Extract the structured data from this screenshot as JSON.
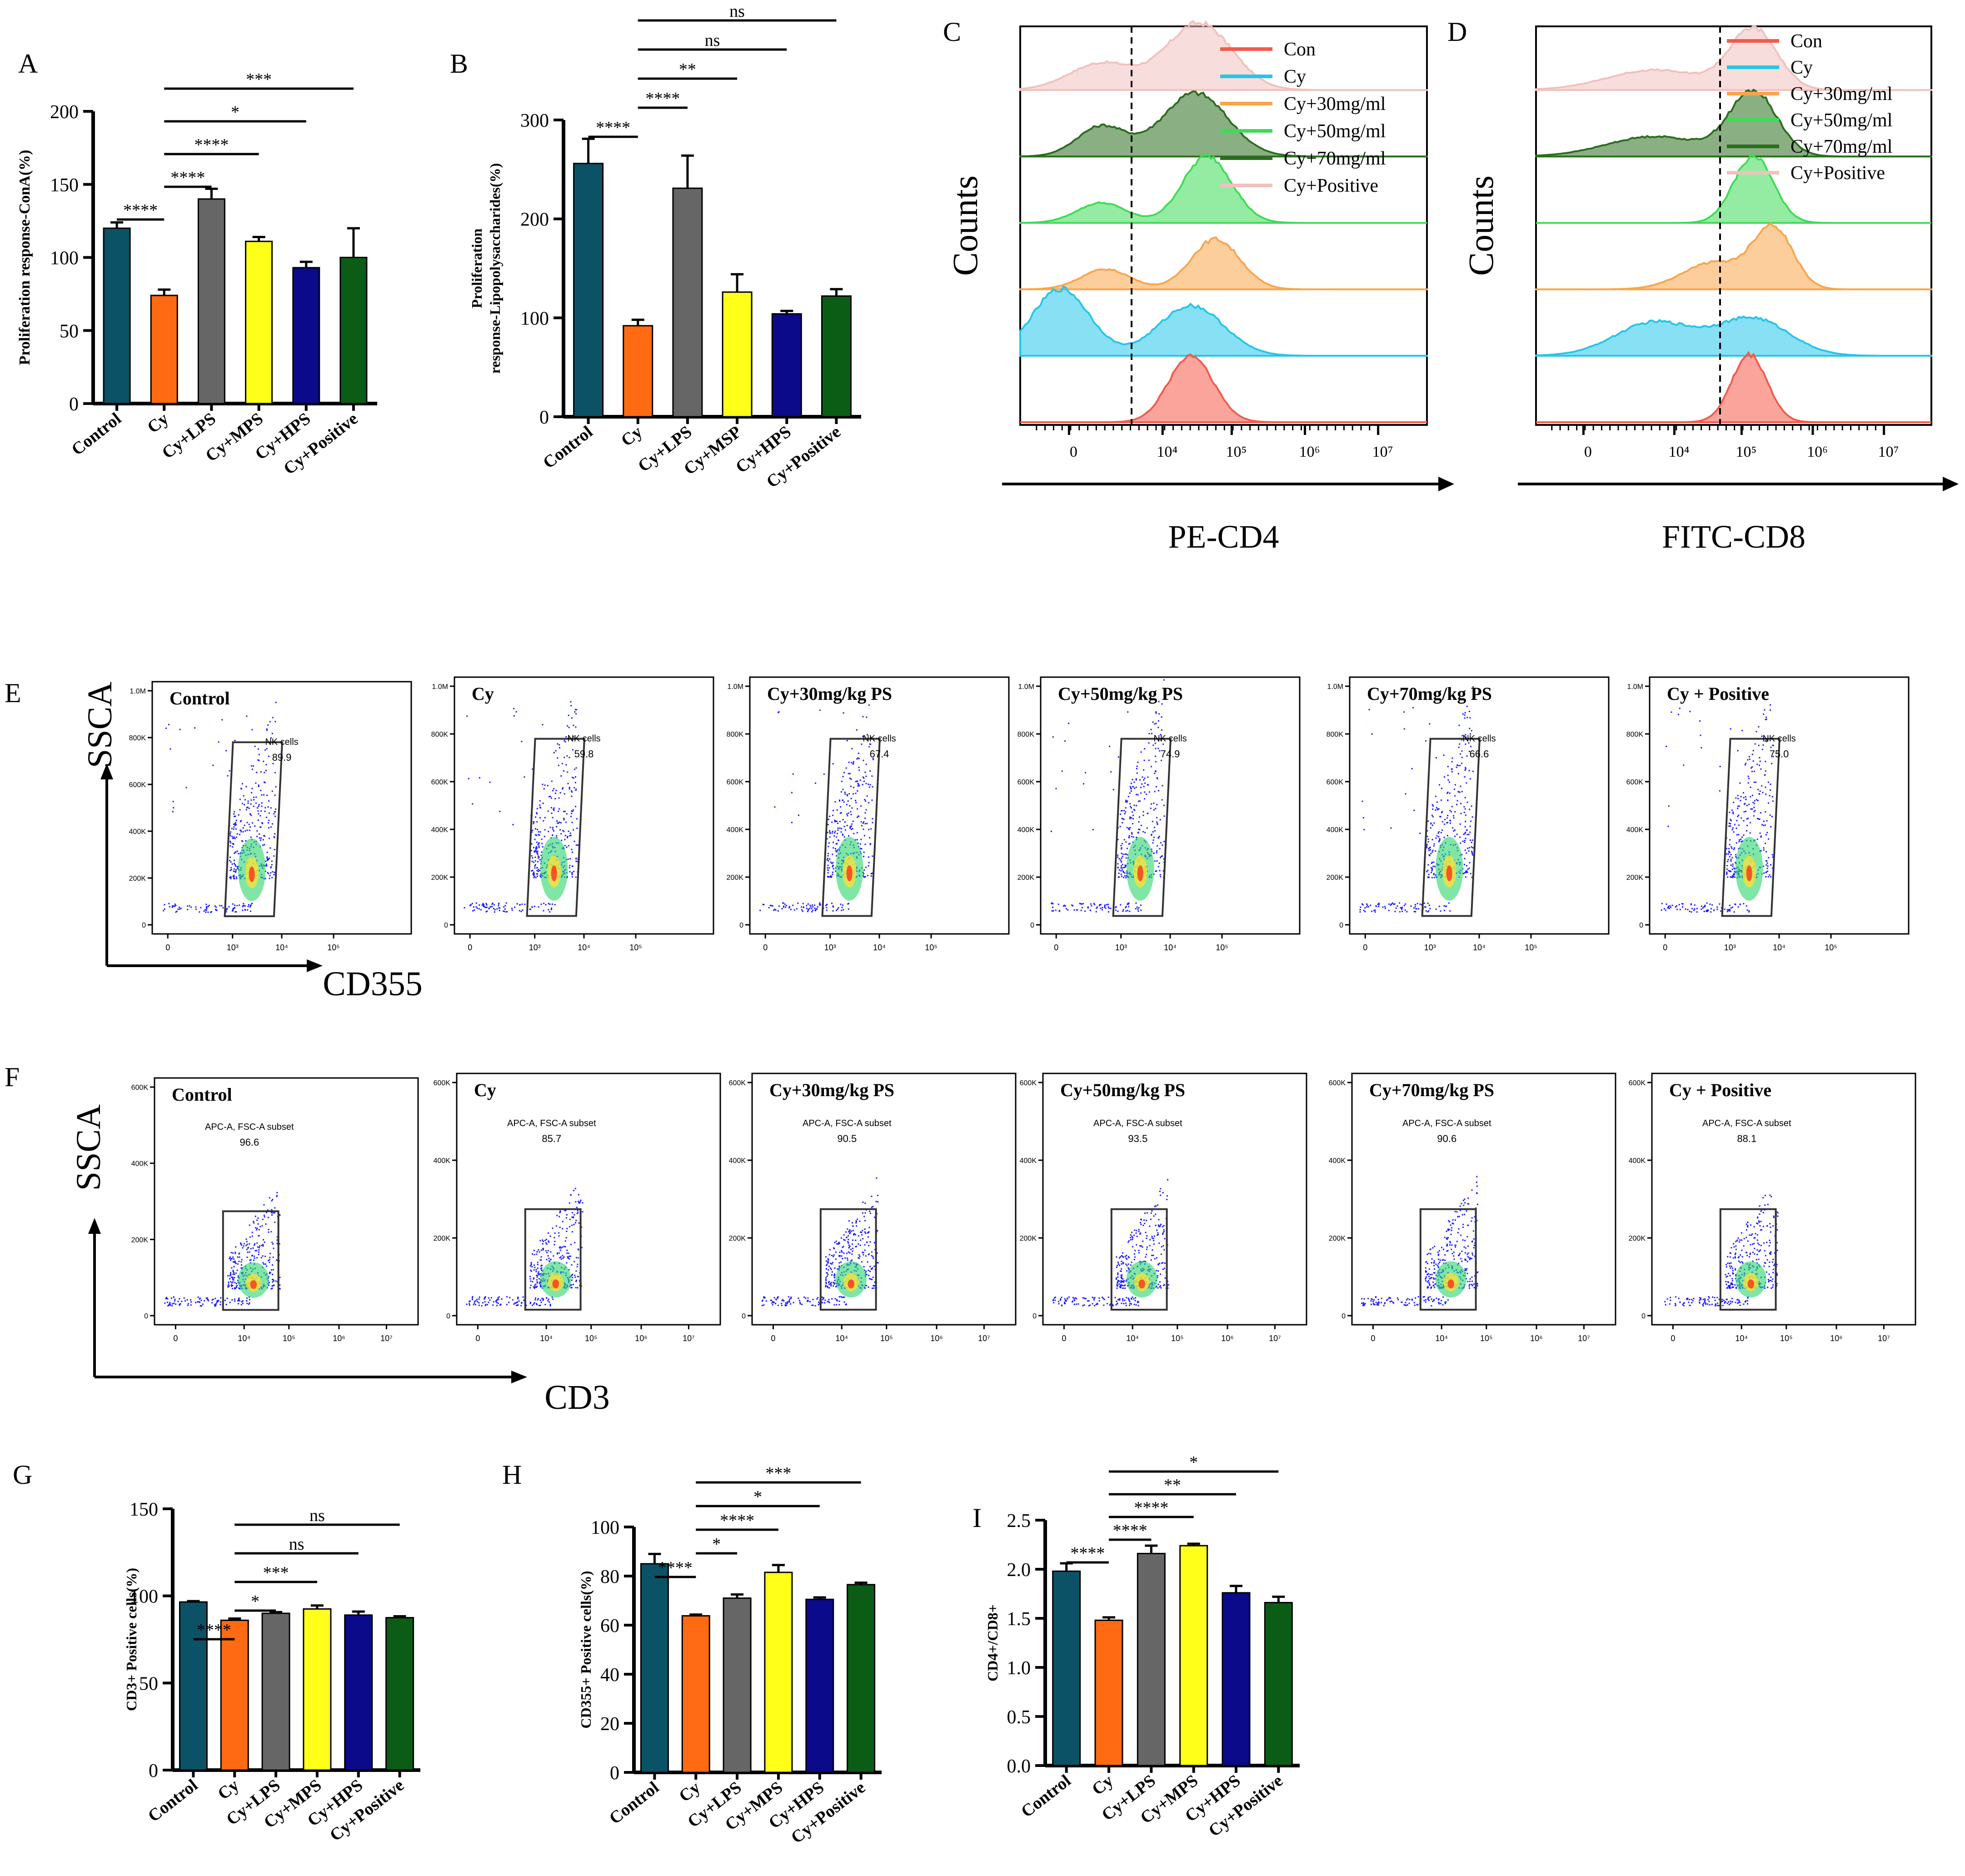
{
  "colors": {
    "control": "#0b5266",
    "cy": "#ff6a13",
    "lps": "#666666",
    "mps": "#ffff1a",
    "hps": "#0a0a8a",
    "positive": "#0b5d16",
    "axis": "#000000"
  },
  "bar_panels": [
    {
      "panel_letter": "A",
      "ylabel": "Proliferation response-ConA(%)",
      "ylim": [
        0,
        200
      ],
      "ticks": [
        "0",
        "50",
        "100",
        "150",
        "200"
      ],
      "categories": [
        "Control",
        "Cy",
        "Cy+LPS",
        "Cy+MPS",
        "Cy+HPS",
        "Cy+Positive"
      ],
      "sig": [
        {
          "label": "****",
          "from": 0,
          "to": 1
        },
        {
          "label": "****",
          "from": 1,
          "to": 2
        },
        {
          "label": "****",
          "from": 1,
          "to": 3
        },
        {
          "label": "*",
          "from": 1,
          "to": 4
        },
        {
          "label": "***",
          "from": 1,
          "to": 5
        }
      ]
    },
    {
      "panel_letter": "B",
      "ylabel_lines": [
        "Proliferation",
        "response-Lipopolysaccharides(%)"
      ],
      "ylim": [
        0,
        300
      ],
      "ticks": [
        "0",
        "100",
        "200",
        "300"
      ],
      "categories": [
        "Control",
        "Cy",
        "Cy+LPS",
        "Cy+MSP",
        "Cy+HPS",
        "Cy+Positive"
      ],
      "sig": [
        {
          "label": "****",
          "from": 0,
          "to": 1
        },
        {
          "label": "****",
          "from": 1,
          "to": 2
        },
        {
          "label": "**",
          "from": 1,
          "to": 3
        },
        {
          "label": "ns",
          "from": 1,
          "to": 4
        },
        {
          "label": "ns",
          "from": 1,
          "to": 5
        }
      ]
    },
    {
      "panel_letter": "G",
      "ylabel": "CD3+ Positive cells(%)",
      "ylim": [
        0,
        150
      ],
      "ticks": [
        "0",
        "50",
        "100",
        "150"
      ],
      "categories": [
        "Control",
        "Cy",
        "Cy+LPS",
        "Cy+MPS",
        "Cy+HPS",
        "Cy+Positive"
      ],
      "sig": [
        {
          "label": "****",
          "from": 0,
          "to": 1
        },
        {
          "label": "*",
          "from": 1,
          "to": 2
        },
        {
          "label": "***",
          "from": 1,
          "to": 3
        },
        {
          "label": "ns",
          "from": 1,
          "to": 4
        },
        {
          "label": "ns",
          "from": 1,
          "to": 5
        }
      ]
    },
    {
      "panel_letter": "H",
      "ylabel": "CD355+ Positive cells(%)",
      "ylim": [
        0,
        100
      ],
      "ticks": [
        "0",
        "20",
        "40",
        "60",
        "80",
        "100"
      ],
      "categories": [
        "Control",
        "Cy",
        "Cy+LPS",
        "Cy+MPS",
        "Cy+HPS",
        "Cy+Positive"
      ],
      "sig": [
        {
          "label": "****",
          "from": 0,
          "to": 1
        },
        {
          "label": "*",
          "from": 1,
          "to": 2
        },
        {
          "label": "****",
          "from": 1,
          "to": 3
        },
        {
          "label": "*",
          "from": 1,
          "to": 4
        },
        {
          "label": "***",
          "from": 1,
          "to": 5
        }
      ]
    },
    {
      "panel_letter": "I",
      "ylabel": "CD4+/CD8+",
      "ylim": [
        0,
        2.5
      ],
      "ticks": [
        "0.0",
        "0.5",
        "1.0",
        "1.5",
        "2.0",
        "2.5"
      ],
      "categories": [
        "Control",
        "Cy",
        "Cy+LPS",
        "Cy+MPS",
        "Cy+HPS",
        "Cy+Positive"
      ],
      "sig": [
        {
          "label": "****",
          "from": 0,
          "to": 1
        },
        {
          "label": "****",
          "from": 1,
          "to": 2
        },
        {
          "label": "****",
          "from": 1,
          "to": 3
        },
        {
          "label": "**",
          "from": 1,
          "to": 4
        },
        {
          "label": "*",
          "from": 1,
          "to": 5
        }
      ]
    }
  ],
  "histogram_panels": [
    {
      "panel_letter": "C",
      "ylabel": "Counts",
      "xlabel": "PE-CD4",
      "xticks": [
        "0",
        "10⁴",
        "10⁵",
        "10⁶",
        "10⁷"
      ],
      "legend": [
        "Con",
        "Cy",
        "Cy+30mg/ml",
        "Cy+50mg/ml",
        "Cy+70mg/ml",
        "Cy+Positive"
      ]
    },
    {
      "panel_letter": "D",
      "ylabel": "Counts",
      "xlabel": "FITC-CD8",
      "xticks": [
        "0",
        "10⁴",
        "10⁵",
        "10⁶",
        "10⁷"
      ],
      "legend": [
        "Con",
        "Cy",
        "Cy+30mg/ml",
        "Cy+50mg/ml",
        "Cy+70mg/ml",
        "Cy+Positive"
      ]
    }
  ],
  "flow_rows": [
    {
      "panel_letter": "E",
      "ylabel": "SSCA",
      "xlabel": "CD355",
      "gate_name": "NK cells",
      "yticks": [
        "0",
        "200K",
        "400K",
        "600K",
        "800K",
        "1.0M"
      ],
      "xticks": [
        "0",
        "10³",
        "10⁴",
        "10⁵"
      ],
      "panels": [
        {
          "title": "Control",
          "value": "89.9"
        },
        {
          "title": "Cy",
          "value": "59.8"
        },
        {
          "title": "Cy+30mg/kg PS",
          "value": "67.4"
        },
        {
          "title": "Cy+50mg/kg PS",
          "value": "74.9"
        },
        {
          "title": "Cy+70mg/kg PS",
          "value": "66.6"
        },
        {
          "title": "Cy + Positive",
          "value": "75.0"
        }
      ]
    },
    {
      "panel_letter": "F",
      "ylabel": "SSCA",
      "xlabel": "CD3",
      "gate_name": "APC-A, FSC-A subset",
      "yticks": [
        "0",
        "200K",
        "400K",
        "600K"
      ],
      "xticks": [
        "0",
        "10⁴",
        "10⁵",
        "10⁶",
        "10⁷"
      ],
      "panels": [
        {
          "title": "Control",
          "value": "96.6"
        },
        {
          "title": "Cy",
          "value": "85.7"
        },
        {
          "title": "Cy+30mg/kg PS",
          "value": "90.5"
        },
        {
          "title": "Cy+50mg/kg PS",
          "value": "93.5"
        },
        {
          "title": "Cy+70mg/kg PS",
          "value": "90.6"
        },
        {
          "title": "Cy + Positive",
          "value": "88.1"
        }
      ]
    }
  ],
  "chart_data": [
    {
      "type": "bar",
      "title": "A",
      "xlabel": "",
      "ylabel": "Proliferation response-ConA(%)",
      "ylim": [
        0,
        200
      ],
      "categories": [
        "Control",
        "Cy",
        "Cy+LPS",
        "Cy+MPS",
        "Cy+HPS",
        "Cy+Positive"
      ],
      "values": [
        120,
        74,
        140,
        111,
        93,
        100
      ],
      "errors": [
        4,
        4,
        7,
        3,
        4,
        20
      ]
    },
    {
      "type": "bar",
      "title": "B",
      "xlabel": "",
      "ylabel": "Proliferation response-Lipopolysaccharides(%)",
      "ylim": [
        0,
        300
      ],
      "categories": [
        "Control",
        "Cy",
        "Cy+LPS",
        "Cy+MSP",
        "Cy+HPS",
        "Cy+Positive"
      ],
      "values": [
        256,
        92,
        231,
        126,
        104,
        122
      ],
      "errors": [
        25,
        6,
        33,
        18,
        3,
        7
      ]
    },
    {
      "type": "bar",
      "title": "G",
      "xlabel": "",
      "ylabel": "CD3+ Positive cells(%)",
      "ylim": [
        0,
        150
      ],
      "categories": [
        "Control",
        "Cy",
        "Cy+LPS",
        "Cy+MPS",
        "Cy+HPS",
        "Cy+Positive"
      ],
      "values": [
        96.5,
        86,
        90,
        92.5,
        89,
        87.5
      ],
      "errors": [
        0.5,
        1,
        0.7,
        2,
        2,
        0.8
      ]
    },
    {
      "type": "bar",
      "title": "H",
      "xlabel": "",
      "ylabel": "CD355+ Positive cells(%)",
      "ylim": [
        0,
        100
      ],
      "categories": [
        "Control",
        "Cy",
        "Cy+LPS",
        "Cy+MPS",
        "Cy+HPS",
        "Cy+Positive"
      ],
      "values": [
        85,
        63.8,
        71,
        81.5,
        70.5,
        76.5
      ],
      "errors": [
        4,
        0.5,
        1.5,
        3,
        0.8,
        0.8
      ]
    },
    {
      "type": "bar",
      "title": "I",
      "xlabel": "",
      "ylabel": "CD4+/CD8+",
      "ylim": [
        0,
        2.5
      ],
      "categories": [
        "Control",
        "Cy",
        "Cy+LPS",
        "Cy+MPS",
        "Cy+HPS",
        "Cy+Positive"
      ],
      "values": [
        1.98,
        1.48,
        2.16,
        2.24,
        1.76,
        1.66
      ],
      "errors": [
        0.08,
        0.03,
        0.08,
        0.02,
        0.07,
        0.06
      ]
    }
  ]
}
